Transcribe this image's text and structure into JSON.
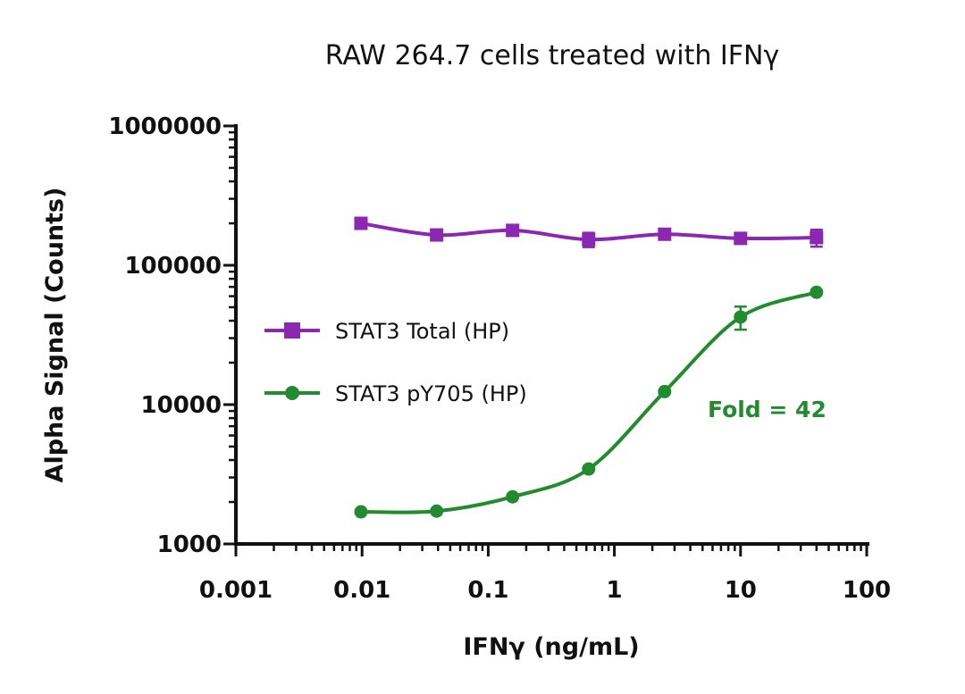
{
  "chart_data": {
    "type": "line",
    "title": "RAW 264.7 cells treated with IFNγ",
    "xlabel": "IFNγ (ng/mL)",
    "ylabel": "Alpha Signal (Counts)",
    "xscale": "log",
    "yscale": "log",
    "xlim": [
      0.001,
      100
    ],
    "ylim": [
      1000,
      1000000
    ],
    "xticks": [
      "0.001",
      "0.01",
      "0.1",
      "1",
      "10",
      "100"
    ],
    "yticks": [
      "1000",
      "10000",
      "100000",
      "1000000"
    ],
    "grid": false,
    "legend_position": "left-middle",
    "x": [
      0.0098,
      0.039,
      0.156,
      0.625,
      2.5,
      10,
      40
    ],
    "series": [
      {
        "name": "STAT3 Total (HP)",
        "marker": "square",
        "color": "#8A28B1",
        "values": [
          200000,
          165000,
          178000,
          153000,
          167000,
          156000,
          158000
        ],
        "errors": [
          0,
          0,
          15000,
          18000,
          0,
          0,
          22000
        ]
      },
      {
        "name": "STAT3 pY705 (HP)",
        "marker": "circle",
        "color": "#238B2F",
        "values": [
          1700,
          1720,
          2180,
          3450,
          12400,
          42500,
          64000
        ],
        "errors": [
          0,
          0,
          0,
          0,
          0,
          8000,
          0
        ]
      }
    ],
    "annotations": [
      {
        "text": "Fold = 42",
        "color": "#238B2F"
      }
    ]
  }
}
